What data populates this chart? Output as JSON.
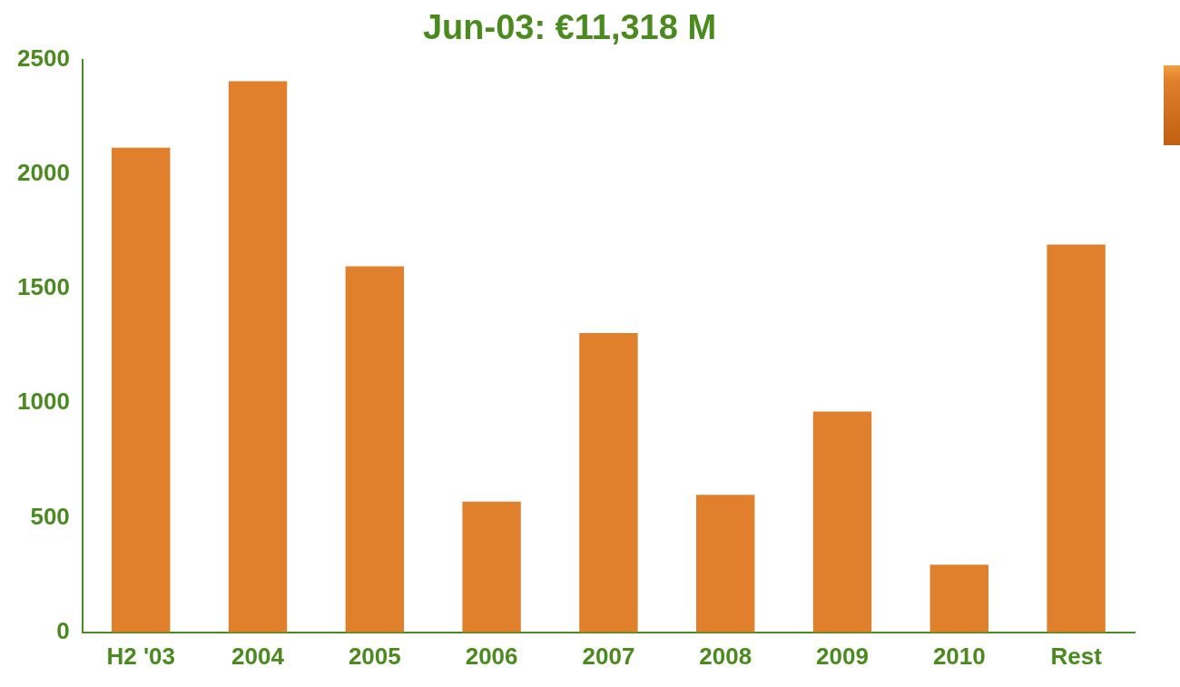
{
  "chart_data": {
    "type": "bar",
    "title": "Jun-03: €11,318 M",
    "categories": [
      "H2 '03",
      "2004",
      "2005",
      "2006",
      "2007",
      "2008",
      "2009",
      "2010",
      "Rest"
    ],
    "values": [
      2115,
      2405,
      1597,
      571,
      1306,
      600,
      964,
      295,
      1692
    ],
    "color": "#e07f2c",
    "ylim": [
      0,
      2500
    ],
    "yticks": [
      0,
      500,
      1000,
      1500,
      2000,
      2500
    ],
    "grid": false,
    "legend": false
  }
}
